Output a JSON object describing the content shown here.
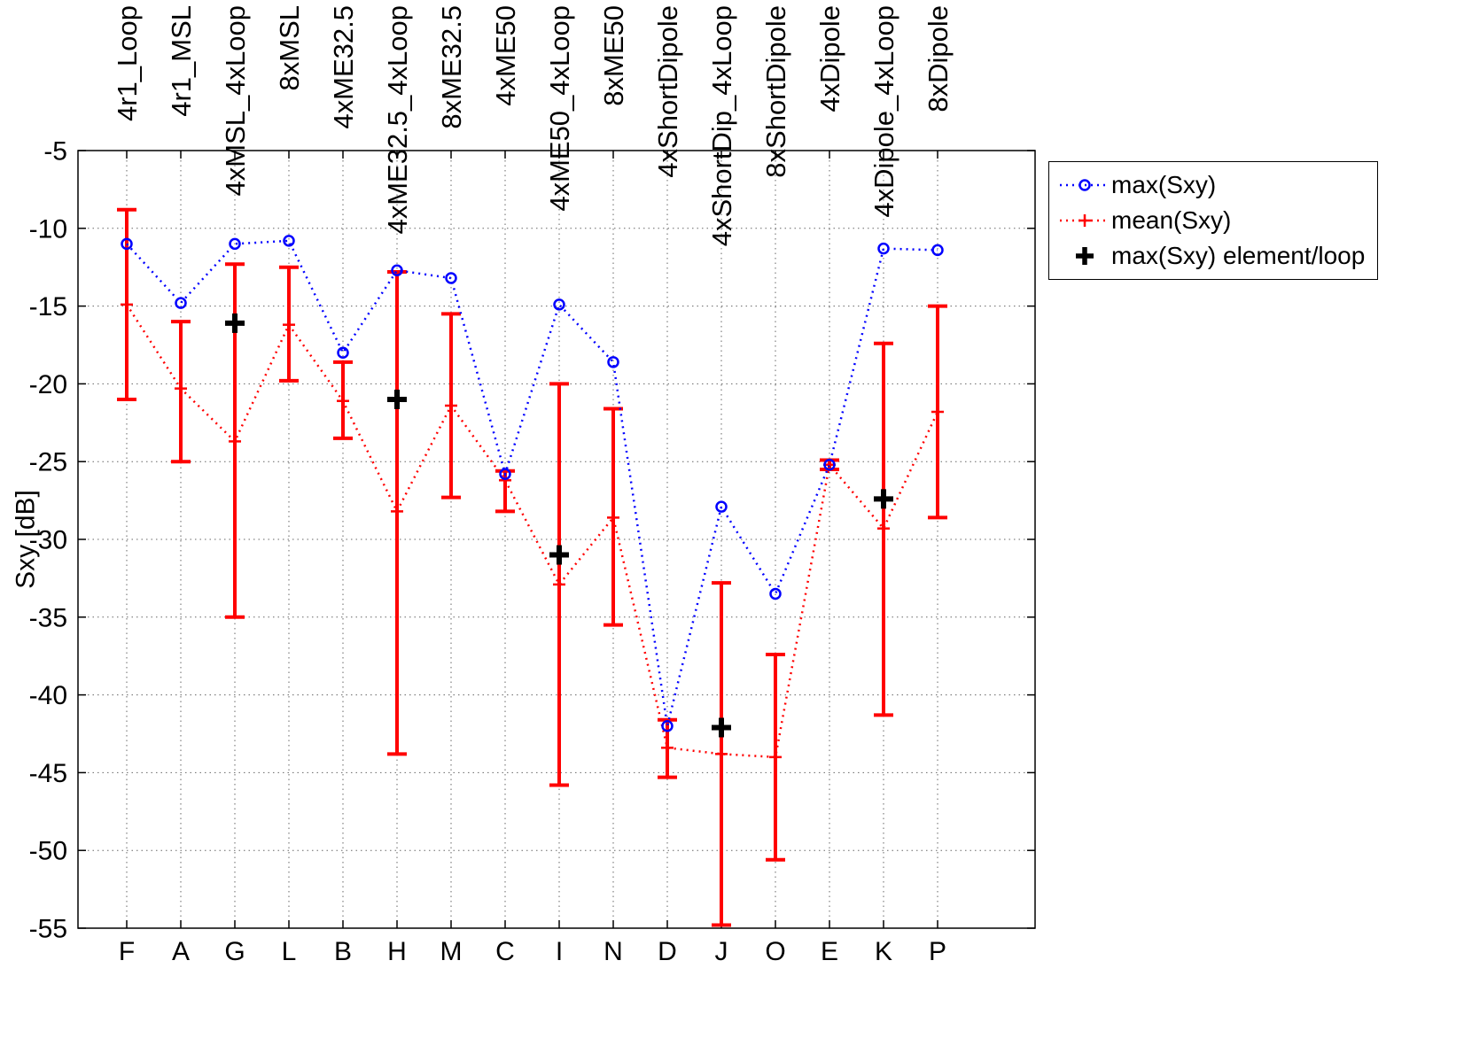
{
  "figure": {
    "ylabel": "Sxy [dB]"
  },
  "chart_data": {
    "type": "line",
    "title": "",
    "xlabel": "",
    "ylabel": "Sxy [dB]",
    "ylim": [
      -55,
      -5
    ],
    "yticks": [
      -5,
      -10,
      -15,
      -20,
      -25,
      -30,
      -35,
      -40,
      -45,
      -50,
      -55
    ],
    "grid": true,
    "legend_position": "top-right",
    "categories": [
      "F",
      "A",
      "G",
      "L",
      "B",
      "H",
      "M",
      "C",
      "I",
      "N",
      "D",
      "J",
      "O",
      "E",
      "K",
      "P"
    ],
    "top_labels": [
      "4r1_Loop",
      "4r1_MSL",
      "4xMSL_4xLoop",
      "8xMSL",
      "4xME32.5",
      "4xME32.5_4xLoop",
      "8xME32.5",
      "4xME50",
      "4xME50_4xLoop",
      "8xME50",
      "4xShortDipole",
      "4xShortDip_4xLoop",
      "8xShortDipole",
      "4xDipole",
      "4xDipole_4xLoop",
      "8xDipole"
    ],
    "series": [
      {
        "name": "max(Sxy)",
        "color": "#0000ff",
        "marker": "circle",
        "linestyle": "dotted",
        "values": [
          -11.0,
          -14.8,
          -11.0,
          -10.8,
          -18.0,
          -12.7,
          -13.2,
          -25.8,
          -14.9,
          -18.6,
          -42.0,
          -27.9,
          -33.5,
          -25.2,
          -11.3,
          -11.4
        ]
      },
      {
        "name": "mean(Sxy)",
        "color": "#ff0000",
        "marker": "plus",
        "linestyle": "dotted",
        "values": [
          -14.9,
          -20.3,
          -23.7,
          -16.2,
          -21.1,
          -28.2,
          -21.4,
          -26.2,
          -32.9,
          -28.6,
          -43.4,
          -43.8,
          -44.0,
          -25.2,
          -29.3,
          -21.8
        ],
        "err_high": [
          -8.8,
          -16.0,
          -12.3,
          -12.5,
          -18.6,
          -12.8,
          -15.5,
          -25.6,
          -20.0,
          -21.6,
          -41.6,
          -32.8,
          -37.4,
          -24.9,
          -17.4,
          -15.0
        ],
        "err_low": [
          -21.0,
          -25.0,
          -35.0,
          -19.8,
          -23.5,
          -43.8,
          -27.3,
          -28.2,
          -45.8,
          -35.5,
          -45.3,
          -54.8,
          -50.6,
          -25.5,
          -41.3,
          -28.6
        ]
      },
      {
        "name": "max(Sxy) element/loop",
        "color": "#000000",
        "marker": "bold-plus",
        "linestyle": "none",
        "values": [
          null,
          null,
          -16.1,
          null,
          null,
          -21.0,
          null,
          null,
          -31.0,
          null,
          null,
          -42.1,
          null,
          null,
          -27.4,
          null
        ]
      }
    ]
  }
}
